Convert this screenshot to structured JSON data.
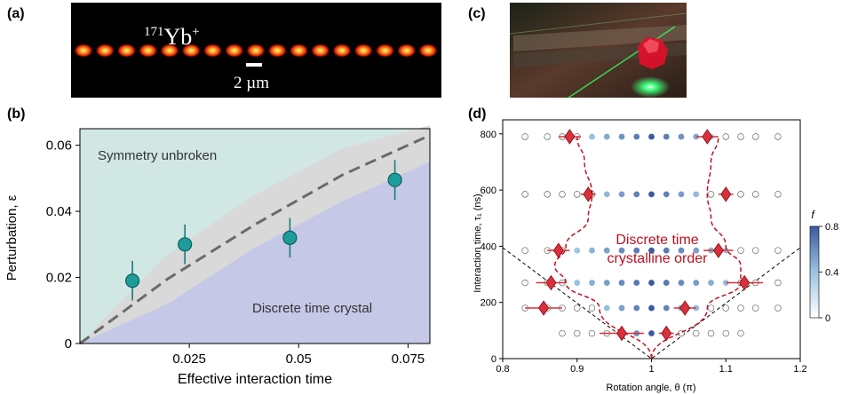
{
  "figure": {
    "panel_labels": [
      "(a)",
      "(b)",
      "(c)",
      "(d)"
    ]
  },
  "panel_a": {
    "ion_mass": "171",
    "ion_symbol": "Yb",
    "ion_charge": "+",
    "scale_label": "2 µm",
    "ion_count": 17
  },
  "panel_c": {
    "description_colors": {
      "laser": "#22ff66",
      "crystal": "#ff1030"
    }
  },
  "chart_data": [
    {
      "type": "scatter",
      "panel": "(b)",
      "xlabel": "Effective interaction time",
      "ylabel": "Perturbation, ε",
      "xlim": [
        0,
        0.08
      ],
      "ylim": [
        0,
        0.065
      ],
      "x_ticks": [
        "0.025",
        "0.05",
        "0.075"
      ],
      "y_ticks": [
        "0",
        "0.02",
        "0.04",
        "0.06"
      ],
      "region_labels": [
        "Symmetry unbroken",
        "Discrete time crystal"
      ],
      "points": [
        {
          "x": 0.012,
          "y": 0.019,
          "err": 0.006
        },
        {
          "x": 0.024,
          "y": 0.03,
          "err": 0.006
        },
        {
          "x": 0.048,
          "y": 0.032,
          "err": 0.006
        },
        {
          "x": 0.072,
          "y": 0.0495,
          "err": 0.006
        }
      ],
      "boundary": {
        "x": [
          0,
          0.02,
          0.04,
          0.06,
          0.08
        ],
        "y": [
          0,
          0.0195,
          0.036,
          0.051,
          0.063
        ]
      },
      "band_upper": {
        "x": [
          0,
          0.02,
          0.04,
          0.06,
          0.08
        ],
        "y": [
          0,
          0.027,
          0.045,
          0.059,
          0.066
        ]
      },
      "band_lower": {
        "x": [
          0,
          0.02,
          0.04,
          0.06,
          0.08
        ],
        "y": [
          0,
          0.012,
          0.029,
          0.043,
          0.055
        ]
      },
      "colors": {
        "upper_region": "#d0e7e3",
        "lower_region": "#c5c8e6",
        "band": "#d9d9d9",
        "marker": "#1e9c9c",
        "line": "#6a6a6a"
      }
    },
    {
      "type": "scatter",
      "panel": "(d)",
      "xlabel": "Rotation angle, θ (π)",
      "ylabel": "Interaction time, τ₁ (ns)",
      "xlim": [
        0.8,
        1.2
      ],
      "ylim": [
        0,
        850
      ],
      "x_ticks": [
        "0.8",
        "0.9",
        "1",
        "1.1",
        "1.2"
      ],
      "y_ticks": [
        "0",
        "200",
        "400",
        "600",
        "800"
      ],
      "annotation": [
        "Discrete time",
        "crystalline order"
      ],
      "colorbar": {
        "label": "f",
        "ticks": [
          "0",
          "0.4",
          "0.8"
        ],
        "range": [
          0,
          0.8
        ],
        "colors": [
          "#ffffff",
          "#9cc3e0",
          "#3b5aa0"
        ]
      },
      "grid_x": [
        0.83,
        0.86,
        0.88,
        0.9,
        0.92,
        0.94,
        0.96,
        0.98,
        1.0,
        1.02,
        1.04,
        1.06,
        1.08,
        1.1,
        1.12,
        1.14,
        1.17
      ],
      "grid_y": [
        90,
        180,
        270,
        385,
        585,
        790
      ],
      "diamonds": [
        {
          "x": 0.89,
          "y": 790,
          "xerr": 0.015
        },
        {
          "x": 1.075,
          "y": 790,
          "xerr": 0.015
        },
        {
          "x": 0.915,
          "y": 585,
          "xerr": 0.01
        },
        {
          "x": 1.1,
          "y": 585,
          "xerr": 0.01
        },
        {
          "x": 0.875,
          "y": 385,
          "xerr": 0.015
        },
        {
          "x": 1.09,
          "y": 385,
          "xerr": 0.02
        },
        {
          "x": 0.865,
          "y": 270,
          "xerr": 0.02
        },
        {
          "x": 1.125,
          "y": 270,
          "xerr": 0.025
        },
        {
          "x": 0.855,
          "y": 180,
          "xerr": 0.025
        },
        {
          "x": 1.045,
          "y": 180,
          "xerr": 0.015
        },
        {
          "x": 0.96,
          "y": 90,
          "xerr": 0.03
        },
        {
          "x": 1.02,
          "y": 90,
          "xerr": 0.01
        }
      ],
      "dashed_red_left": {
        "x": [
          1.0,
          0.93,
          0.885,
          0.87,
          0.885,
          0.915,
          0.92,
          0.91,
          0.9
        ],
        "y": [
          0,
          180,
          270,
          330,
          400,
          500,
          585,
          700,
          790
        ]
      },
      "dashed_red_right": {
        "x": [
          1.0,
          1.075,
          1.12,
          1.12,
          1.1,
          1.08,
          1.075,
          1.08,
          1.09
        ],
        "y": [
          0,
          180,
          270,
          330,
          400,
          500,
          585,
          700,
          790
        ]
      },
      "dashed_black": {
        "x": [
          0.8,
          1.0,
          1.2
        ],
        "y": [
          395,
          0,
          395
        ]
      },
      "colors": {
        "diamond": "#d9303b",
        "curve": "#c0101f",
        "dashed": "#000000"
      }
    }
  ]
}
